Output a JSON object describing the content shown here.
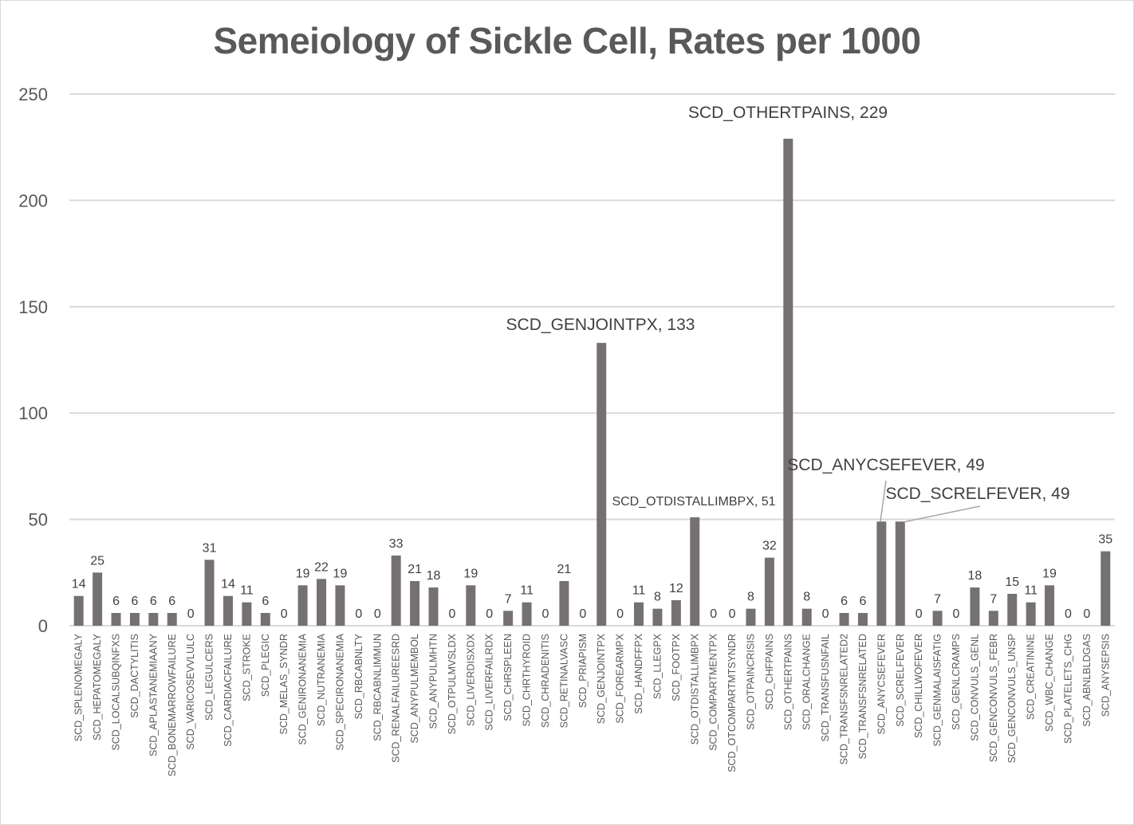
{
  "chart_data": {
    "type": "bar",
    "title": "Semeiology of Sickle Cell, Rates per 1000",
    "xlabel": "",
    "ylabel": "",
    "ylim": [
      0,
      250
    ],
    "yticks": [
      0,
      50,
      100,
      150,
      200,
      250
    ],
    "grid": true,
    "legend": "none",
    "bar_color": "#767171",
    "categories": [
      "SCD_SPLENOMEGALY",
      "SCD_HEPATOMEGALY",
      "SCD_LOCALSUBQINFXS",
      "SCD_DACTYLITIS",
      "SCD_APLASTANEMIAANY",
      "SCD_BONEMARROWFAILURE",
      "SCD_VARICOSEVVLULC",
      "SCD_LEGULCERS",
      "SCD_CARDIACFAILURE",
      "SCD_STROKE",
      "SCD_PLEGIC",
      "SCD_MELAS_SYNDR",
      "SCD_GENIRONANEMIA",
      "SCD_NUTRANEMIA",
      "SCD_SPECIRONANEMIA",
      "SCD_RBCABNLTY",
      "SCD_RBCABNLIMMUN",
      "SCD_RENALFAILUREESRD",
      "SCD_ANYPULMEMBOL",
      "SCD_ANYPULMHTN",
      "SCD_OTPULMVSLDX",
      "SCD_LIVERDISXDX",
      "SCD_LIVERFAILRDX",
      "SCD_CHRSPLEEN",
      "SCD_CHRTHYROID",
      "SCD_CHRADENITIS",
      "SCD_RETINALVASC",
      "SCD_PRIAPISM",
      "SCD_GENJOINTPX",
      "SCD_FOREARMPX",
      "SCD_HANDFFPX",
      "SCD_LLEGPX",
      "SCD_FOOTPX",
      "SCD_OTDISTALLIMBPX",
      "SCD_COMPARTMENTPX",
      "SCD_OTCOMPARTMTSYNDR",
      "SCD_OTPAINCRISIS",
      "SCD_CHFPAINS",
      "SCD_OTHERTPAINS",
      "SCD_ORALCHANGE",
      "SCD_TRANSFUSNFAIL",
      "SCD_TRANSFSNRELATED2",
      "SCD_TRANSFSNRELATED",
      "SCD_ANYCSEFEVER",
      "SCD_SCRELFEVER",
      "SCD_CHILLWOFEVER",
      "SCD_GENMALAISFATIG",
      "SCD_GENLCRAMPS",
      "SCD_CONVULS_GENL",
      "SCD_GENCONVULS_FEBR",
      "SCD_GENCONVULS_UNSP",
      "SCD_CREATININE",
      "SCD_WBC_CHANGE",
      "SCD_PLATELETS_CHG",
      "SCD_ABNLBLDGAS",
      "SCD_ANYSEPSIS"
    ],
    "values": [
      14,
      25,
      6,
      6,
      6,
      6,
      0,
      31,
      14,
      11,
      6,
      0,
      19,
      22,
      19,
      0,
      0,
      33,
      21,
      18,
      0,
      19,
      0,
      7,
      11,
      0,
      21,
      0,
      133,
      0,
      11,
      8,
      12,
      51,
      0,
      0,
      8,
      32,
      229,
      8,
      0,
      6,
      6,
      49,
      49,
      0,
      7,
      0,
      18,
      7,
      15,
      11,
      19,
      0,
      0,
      35
    ],
    "callouts": [
      {
        "category": "SCD_GENJOINTPX",
        "text": "SCD_GENJOINTPX, 133"
      },
      {
        "category": "SCD_OTHERTPAINS",
        "text": "SCD_OTHERTPAINS, 229"
      },
      {
        "category": "SCD_OTDISTALLIMBPX",
        "text": "SCD_OTDISTALLIMBPX, 51"
      },
      {
        "category": "SCD_ANYCSEFEVER",
        "text": "SCD_ANYCSEFEVER, 49"
      },
      {
        "category": "SCD_SCRELFEVER",
        "text": "SCD_SCRELFEVER, 49"
      }
    ]
  }
}
